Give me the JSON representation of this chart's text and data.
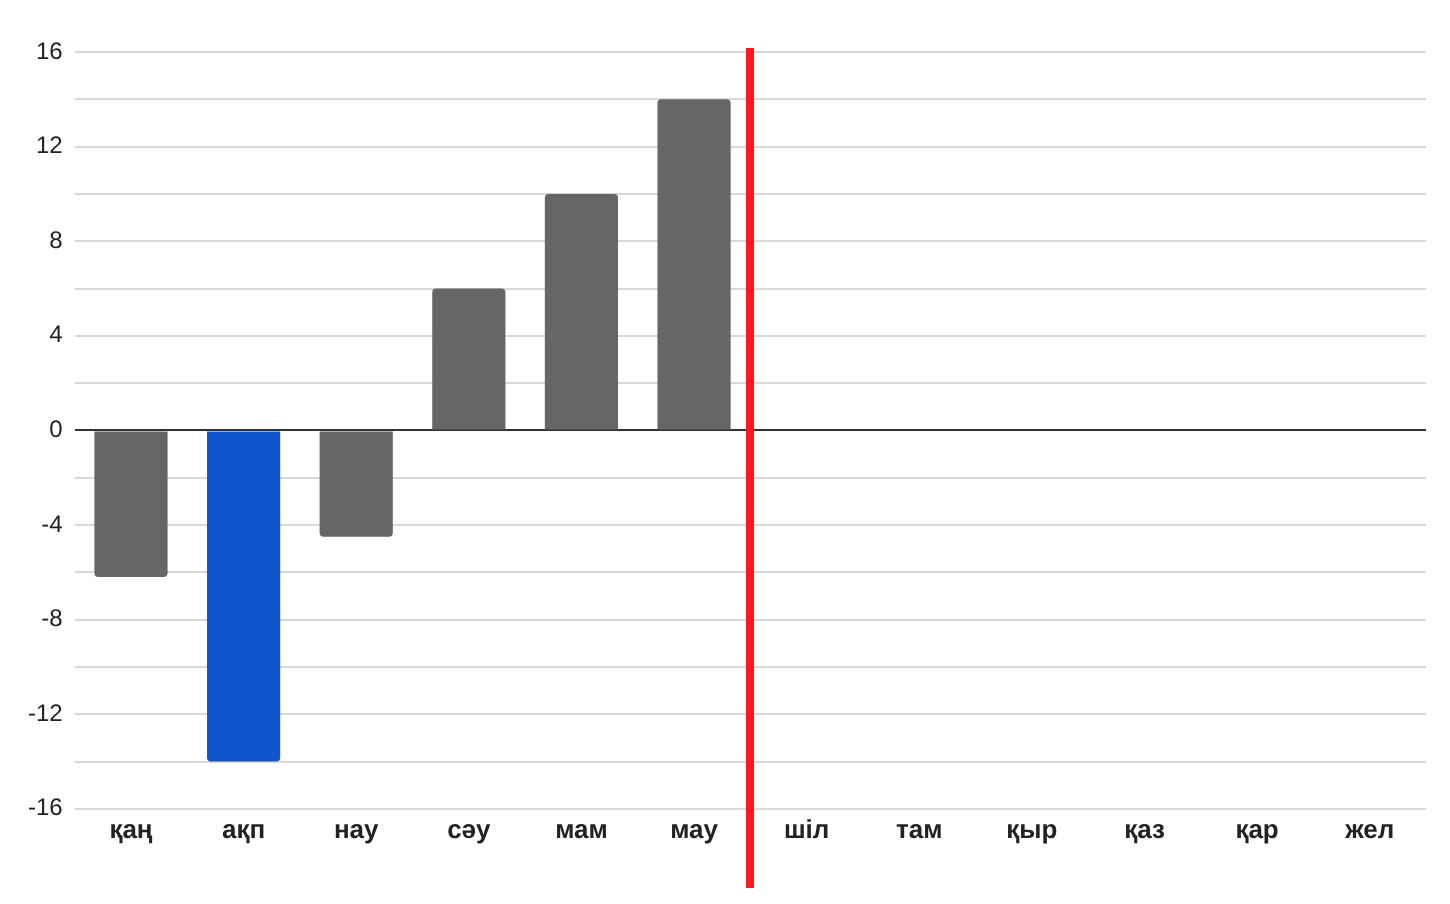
{
  "chart_data": {
    "type": "bar",
    "categories": [
      "қаң",
      "ақп",
      "нау",
      "сәу",
      "мам",
      "мау",
      "шіл",
      "там",
      "қыр",
      "қаз",
      "қар",
      "жел"
    ],
    "values": [
      -6.2,
      -14,
      -4.5,
      6,
      10,
      14,
      null,
      null,
      null,
      null,
      null,
      null
    ],
    "colors": [
      "#666666",
      "#1155cc",
      "#666666",
      "#666666",
      "#666666",
      "#666666",
      "#666666",
      "#666666",
      "#666666",
      "#666666",
      "#666666",
      "#666666"
    ],
    "ylim": [
      -16,
      16
    ],
    "yticks": [
      -16,
      {
        "value": -14,
        "label": null
      },
      -12,
      {
        "value": -10,
        "label": null
      },
      -8,
      {
        "value": -6,
        "label": null
      },
      -4,
      {
        "value": -2,
        "label": null
      },
      0,
      {
        "value": 2,
        "label": null
      },
      4,
      {
        "value": 6,
        "label": null
      },
      8,
      {
        "value": 10,
        "label": null
      },
      12,
      {
        "value": 14,
        "label": null
      },
      16
    ],
    "grid": "y"
  }
}
